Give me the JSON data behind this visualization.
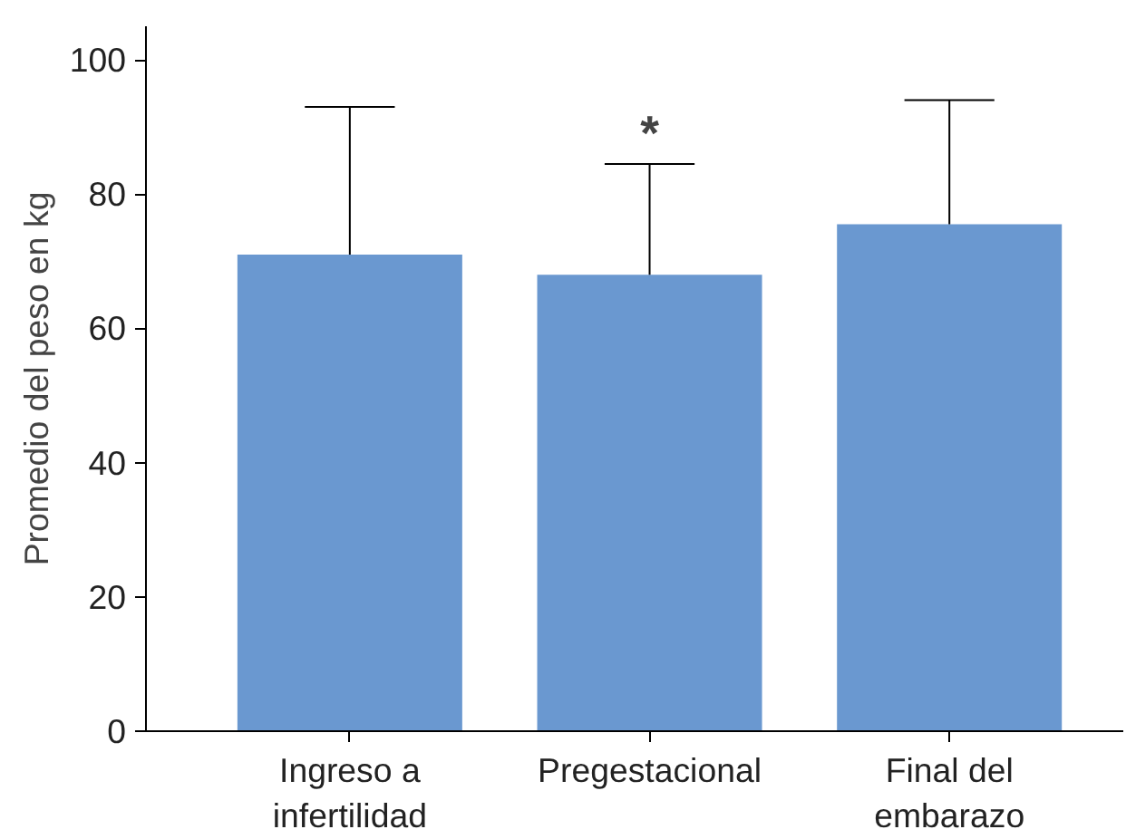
{
  "chart_data": {
    "type": "bar",
    "ylabel": "Promedio del peso en kg",
    "categories": [
      "Ingreso a\ninfertilidad",
      "Pregestacional",
      "Final del\nembarazo"
    ],
    "values": [
      71,
      68,
      75.5
    ],
    "color": "#6a98d0",
    "errors": [
      [
        71,
        93
      ],
      [
        68,
        84.5
      ],
      [
        75.5,
        94
      ]
    ],
    "ylim": [
      0,
      105
    ],
    "yticks": [
      0,
      20,
      40,
      60,
      80,
      100
    ],
    "grid": false,
    "annotations": [
      "*"
    ]
  }
}
